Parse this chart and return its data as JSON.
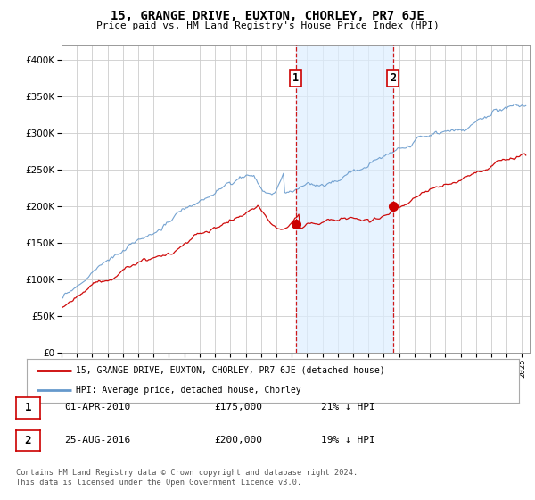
{
  "title": "15, GRANGE DRIVE, EUXTON, CHORLEY, PR7 6JE",
  "subtitle": "Price paid vs. HM Land Registry's House Price Index (HPI)",
  "sale1_date": "01-APR-2010",
  "sale1_price": 175000,
  "sale1_hpi_pct": "21% ↓ HPI",
  "sale2_date": "25-AUG-2016",
  "sale2_price": 200000,
  "sale2_hpi_pct": "19% ↓ HPI",
  "red_line_label": "15, GRANGE DRIVE, EUXTON, CHORLEY, PR7 6JE (detached house)",
  "blue_line_label": "HPI: Average price, detached house, Chorley",
  "footnote": "Contains HM Land Registry data © Crown copyright and database right 2024.\nThis data is licensed under the Open Government Licence v3.0.",
  "red_color": "#cc0000",
  "blue_color": "#6699cc",
  "shade_color": "#ddeeff",
  "marker_color": "#cc0000",
  "vline_color": "#cc0000",
  "grid_color": "#cccccc",
  "bg_color": "#ffffff",
  "plot_bg_color": "#ffffff",
  "ylim_max": 420000,
  "xlim_start": 1995.0,
  "xlim_end": 2025.5,
  "sale1_x": 2010.25,
  "sale2_x": 2016.583
}
